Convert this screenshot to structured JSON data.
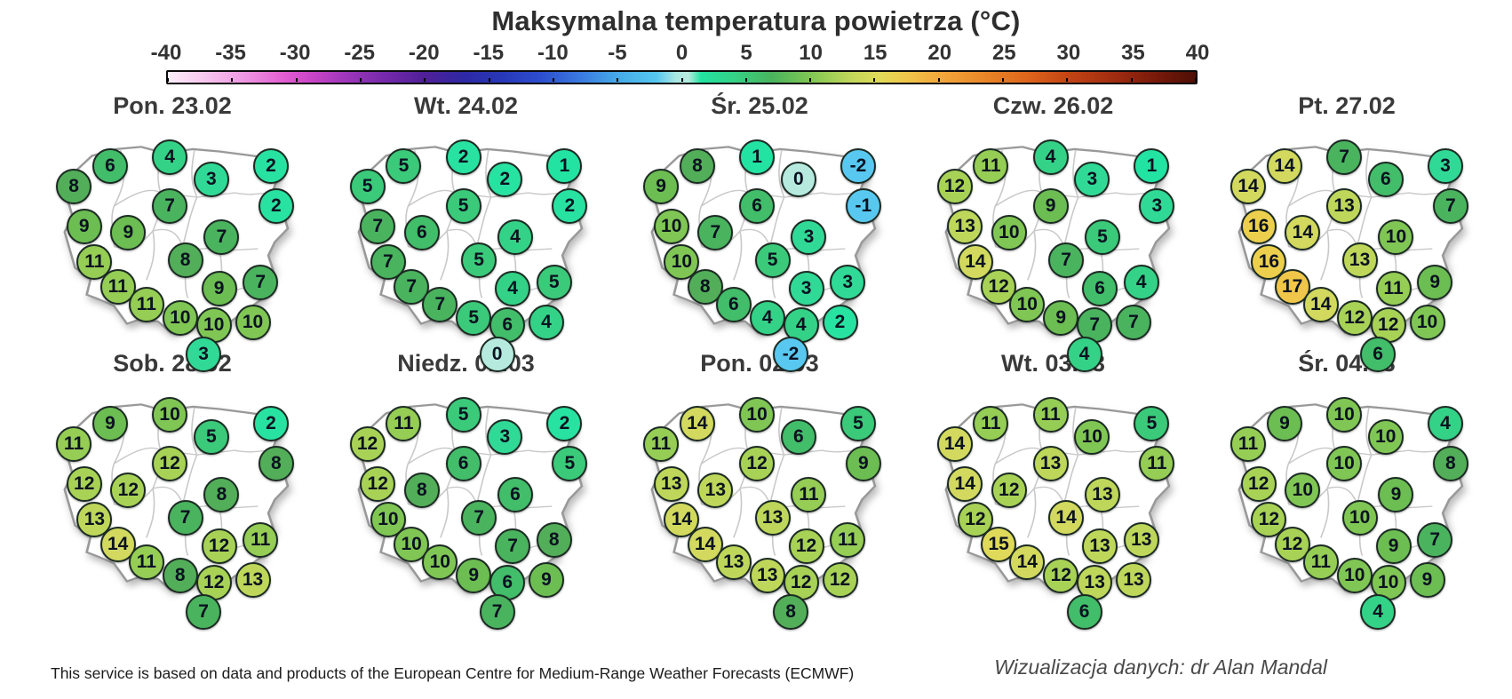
{
  "title": "Maksymalna temperatura powietrza (°C)",
  "colorbar": {
    "ticks": [
      "-40",
      "-35",
      "-30",
      "-25",
      "-20",
      "-15",
      "-10",
      "-5",
      "0",
      "5",
      "10",
      "15",
      "20",
      "25",
      "30",
      "35",
      "40"
    ],
    "gradient_stops": [
      {
        "v": -40,
        "c": "#fdf0fa"
      },
      {
        "v": -37,
        "c": "#f6c4ee"
      },
      {
        "v": -34,
        "c": "#ee96e2"
      },
      {
        "v": -31,
        "c": "#e35ed2"
      },
      {
        "v": -29,
        "c": "#cc46c8"
      },
      {
        "v": -26,
        "c": "#9c36ba"
      },
      {
        "v": -23,
        "c": "#7429aa"
      },
      {
        "v": -20,
        "c": "#4f2098"
      },
      {
        "v": -17,
        "c": "#2f28a4"
      },
      {
        "v": -14,
        "c": "#2738b8"
      },
      {
        "v": -11,
        "c": "#2d4ecf"
      },
      {
        "v": -8,
        "c": "#3a78e0"
      },
      {
        "v": -5,
        "c": "#46aae8"
      },
      {
        "v": -2,
        "c": "#55c7f0"
      },
      {
        "v": -0.5,
        "c": "#a8e6e2"
      },
      {
        "v": 0.5,
        "c": "#b9ece0"
      },
      {
        "v": 1.5,
        "c": "#22e3a2"
      },
      {
        "v": 4,
        "c": "#34d287"
      },
      {
        "v": 7,
        "c": "#4ab35e"
      },
      {
        "v": 10,
        "c": "#80c654"
      },
      {
        "v": 13,
        "c": "#bed75a"
      },
      {
        "v": 15.5,
        "c": "#e2da58"
      },
      {
        "v": 17.5,
        "c": "#f0c64a"
      },
      {
        "v": 20,
        "c": "#f2a93c"
      },
      {
        "v": 24,
        "c": "#e88226"
      },
      {
        "v": 27,
        "c": "#dd641c"
      },
      {
        "v": 30,
        "c": "#c44514"
      },
      {
        "v": 34,
        "c": "#9c2a10"
      },
      {
        "v": 37,
        "c": "#77190a"
      },
      {
        "v": 40,
        "c": "#4d0f06"
      }
    ]
  },
  "footer": {
    "attribution": "This service is based on data and products of the European Centre for Medium-Range Weather Forecasts (ECMWF)",
    "credit": "Wizualizacja danych: dr Alan Mandal"
  },
  "chart_data": {
    "type": "heatmap",
    "subtype": "poland-bubble-map-grid",
    "title": "Maksymalna temperatura powietrza (°C)",
    "unit": "°C",
    "colorbar_range": [
      -40,
      40
    ],
    "colorbar_tick_step": 5,
    "legend_position": "top",
    "grid": "2 rows x 5 columns of daily maps",
    "point_positions_pct": [
      [
        12,
        26
      ],
      [
        26,
        17
      ],
      [
        49,
        13
      ],
      [
        65,
        23
      ],
      [
        88,
        17
      ],
      [
        90,
        35
      ],
      [
        16,
        44
      ],
      [
        33,
        47
      ],
      [
        49,
        35
      ],
      [
        55,
        59
      ],
      [
        69,
        49
      ],
      [
        20,
        60
      ],
      [
        29,
        71
      ],
      [
        40,
        79
      ],
      [
        53,
        85
      ],
      [
        68,
        72
      ],
      [
        84,
        69
      ],
      [
        66,
        88
      ],
      [
        81,
        87
      ],
      [
        62,
        101
      ]
    ],
    "days": [
      {
        "label": "Pon. 23.02",
        "values": [
          8,
          6,
          4,
          3,
          2,
          2,
          9,
          9,
          7,
          8,
          7,
          11,
          11,
          11,
          10,
          9,
          7,
          10,
          10,
          3
        ]
      },
      {
        "label": "Wt. 24.02",
        "values": [
          5,
          5,
          2,
          2,
          1,
          2,
          7,
          6,
          5,
          5,
          4,
          7,
          7,
          7,
          5,
          4,
          5,
          6,
          4,
          0
        ]
      },
      {
        "label": "Śr. 25.02",
        "values": [
          9,
          8,
          1,
          0,
          -2,
          -1,
          10,
          7,
          6,
          5,
          3,
          10,
          8,
          6,
          4,
          3,
          3,
          4,
          2,
          -2
        ]
      },
      {
        "label": "Czw. 26.02",
        "values": [
          12,
          11,
          4,
          3,
          1,
          3,
          13,
          10,
          9,
          7,
          5,
          14,
          12,
          10,
          9,
          6,
          4,
          7,
          7,
          4
        ]
      },
      {
        "label": "Pt. 27.02",
        "values": [
          14,
          14,
          7,
          6,
          3,
          7,
          16,
          14,
          13,
          13,
          10,
          16,
          17,
          14,
          12,
          11,
          9,
          12,
          10,
          6
        ]
      },
      {
        "label": "Sob. 28.02",
        "values": [
          11,
          9,
          10,
          5,
          2,
          8,
          12,
          12,
          12,
          7,
          8,
          13,
          14,
          11,
          8,
          12,
          11,
          12,
          13,
          7
        ]
      },
      {
        "label": "Niedz. 01.03",
        "values": [
          12,
          11,
          5,
          3,
          2,
          5,
          12,
          8,
          6,
          7,
          6,
          10,
          10,
          10,
          9,
          7,
          8,
          6,
          9,
          7
        ]
      },
      {
        "label": "Pon. 02.03",
        "values": [
          11,
          14,
          10,
          6,
          5,
          9,
          13,
          13,
          12,
          13,
          11,
          14,
          14,
          13,
          13,
          12,
          11,
          12,
          12,
          8
        ]
      },
      {
        "label": "Wt. 03.03",
        "values": [
          14,
          11,
          11,
          10,
          5,
          11,
          14,
          12,
          13,
          14,
          13,
          12,
          15,
          14,
          12,
          13,
          13,
          13,
          13,
          6
        ]
      },
      {
        "label": "Śr. 04.03",
        "values": [
          11,
          9,
          10,
          10,
          4,
          8,
          12,
          10,
          10,
          10,
          9,
          12,
          12,
          11,
          10,
          9,
          7,
          10,
          9,
          4
        ]
      }
    ],
    "value_colors": {
      "-2": "#58c8f0",
      "-1": "#58c8f0",
      "0": "#b6eadf",
      "1": "#22e3a2",
      "2": "#28e2a2",
      "3": "#30da96",
      "4": "#34d287",
      "5": "#3aca7a",
      "6": "#42bd6a",
      "7": "#4ab35e",
      "8": "#52ae58",
      "9": "#6cbd52",
      "10": "#80c654",
      "11": "#95cd55",
      "12": "#a8d256",
      "13": "#bed75a",
      "14": "#d2d95e",
      "15": "#e0da5a",
      "16": "#eccf4c",
      "17": "#f0c64a"
    }
  }
}
